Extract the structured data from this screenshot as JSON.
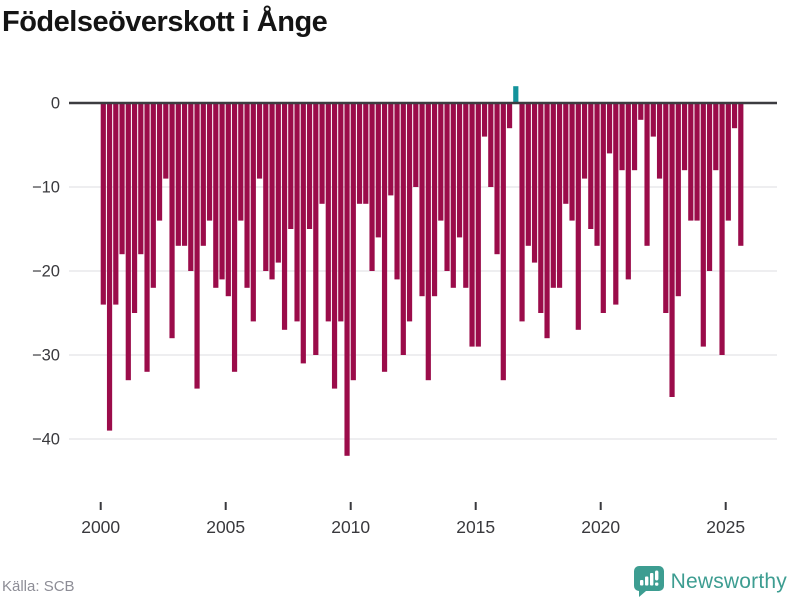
{
  "title": "Födelseöverskott i Ånge",
  "footer": {
    "source": "Källa: SCB",
    "brand": "Newsworthy"
  },
  "colors": {
    "negative_bar": "#9B0C4A",
    "positive_bar": "#13939B",
    "zero_line": "#3C3C40",
    "gridline": "#E8E8EB",
    "axis_text": "#39393D",
    "title_text": "#141414",
    "muted_text": "#8D8D96",
    "brand_teal": "#3D9D91"
  },
  "chart_data": {
    "type": "bar",
    "title": "Födelseöverskott i Ånge",
    "source": "Källa: SCB",
    "frequency": "quarterly",
    "start_period": "2000-Q1",
    "end_period": "2025-Q3",
    "values": [
      -24,
      -39,
      -24,
      -18,
      -33,
      -25,
      -18,
      -32,
      -22,
      -14,
      -9,
      -28,
      -17,
      -17,
      -20,
      -34,
      -17,
      -14,
      -22,
      -21,
      -23,
      -32,
      -14,
      -22,
      -26,
      -9,
      -20,
      -21,
      -19,
      -27,
      -15,
      -26,
      -31,
      -15,
      -30,
      -12,
      -26,
      -34,
      -26,
      -42,
      -33,
      -12,
      -12,
      -20,
      -16,
      -32,
      -11,
      -21,
      -30,
      -26,
      -10,
      -23,
      -33,
      -23,
      -14,
      -20,
      -22,
      -16,
      -22,
      -29,
      -29,
      -4,
      -10,
      -18,
      -33,
      -3,
      2,
      -26,
      -17,
      -19,
      -25,
      -28,
      -22,
      -22,
      -12,
      -14,
      -27,
      -9,
      -15,
      -17,
      -25,
      -6,
      -24,
      -8,
      -21,
      -8,
      -2,
      -17,
      -4,
      -9,
      -25,
      -35,
      -23,
      -8,
      -14,
      -14,
      -29,
      -20,
      -8,
      -30,
      -14,
      -3,
      -17
    ],
    "x_axis": {
      "tick_years": [
        2000,
        2005,
        2010,
        2015,
        2020,
        2025
      ],
      "labels": [
        "2000",
        "2005",
        "2010",
        "2015",
        "2020",
        "2025"
      ]
    },
    "y_axis": {
      "ticks": [
        0,
        -10,
        -20,
        -30,
        -40
      ],
      "labels": [
        "0",
        "−10",
        "−20",
        "−30",
        "−40"
      ]
    },
    "ylim": [
      -44,
      3
    ],
    "grid": true,
    "legend": false
  }
}
